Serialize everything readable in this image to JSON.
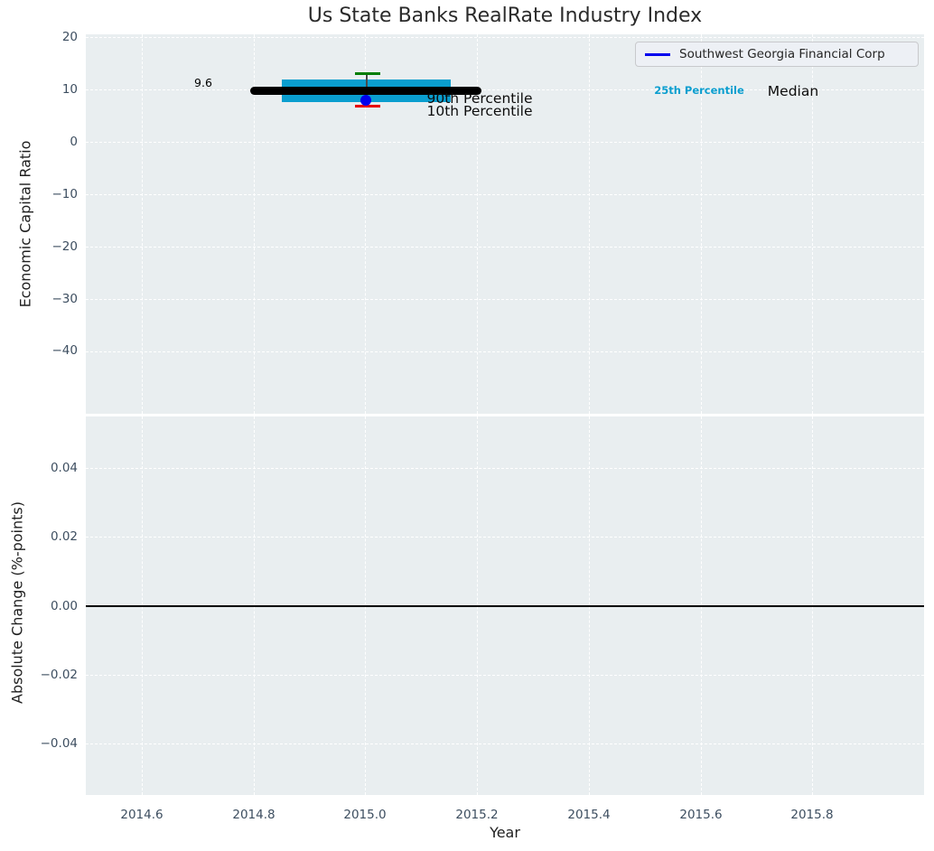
{
  "figure": {
    "title": "Us State Banks RealRate Industry Index"
  },
  "legend": {
    "label": "Southwest Georgia Financial Corp"
  },
  "top_panel": {
    "ylabel": "Economic Capital Ratio",
    "yticks": [
      "20",
      "10",
      "0",
      "−10",
      "−20",
      "−30",
      "−40"
    ],
    "annotations": {
      "median_value": "9.6",
      "p90": "90th Percentile",
      "p10": "10th Percentile",
      "p25": "25th Percentile",
      "median": "Median"
    }
  },
  "bottom_panel": {
    "ylabel": "Absolute Change (%-points)",
    "yticks": [
      "0.04",
      "0.02",
      "0.00",
      "−0.02",
      "−0.04"
    ]
  },
  "x_axis": {
    "label": "Year",
    "ticks": [
      "2014.6",
      "2014.8",
      "2015.0",
      "2015.2",
      "2015.4",
      "2015.6",
      "2015.8"
    ]
  },
  "colors": {
    "panel_bg": "#e9eef0",
    "grid": "#ffffff",
    "tick_label": "#3d4e60",
    "iqr_box": "#0a9ecf",
    "median_line": "#000000",
    "p90_cap": "#007d00",
    "p10_cap": "#e80000",
    "company_marker": "#0000ee",
    "zero_line": "#000000"
  },
  "chart_data": [
    {
      "type": "box-errorbar",
      "title": "Us State Banks RealRate Industry Index",
      "xlabel": "Year",
      "ylabel": "Economic Capital Ratio",
      "xlim": [
        2014.5,
        2016.0
      ],
      "ylim": [
        -52,
        20.5
      ],
      "xticks": [
        2014.6,
        2014.8,
        2015.0,
        2015.2,
        2015.4,
        2015.6,
        2015.8
      ],
      "yticks": [
        20,
        10,
        0,
        -10,
        -20,
        -30,
        -40
      ],
      "grid": true,
      "legend_entries": [
        "Southwest Georgia Financial Corp"
      ],
      "legend_position": "upper right",
      "point": {
        "x": 2015.0,
        "median": 9.6,
        "median_label": "9.6",
        "median_x_range": [
          2014.8,
          2015.2
        ],
        "p90": 13.0,
        "p75": 11.7,
        "p25": 7.6,
        "p10": 6.9,
        "box_x_range": [
          2014.85,
          2015.15
        ],
        "company_value": 7.9
      },
      "series": [
        {
          "name": "Southwest Georgia Financial Corp",
          "x": [
            2015.0
          ],
          "y": [
            7.9
          ]
        }
      ]
    },
    {
      "type": "line",
      "xlabel": "Year",
      "ylabel": "Absolute Change (%-points)",
      "xlim": [
        2014.5,
        2016.0
      ],
      "ylim": [
        -0.055,
        0.055
      ],
      "xticks": [
        2014.6,
        2014.8,
        2015.0,
        2015.2,
        2015.4,
        2015.6,
        2015.8
      ],
      "yticks": [
        0.04,
        0.02,
        0.0,
        -0.02,
        -0.04
      ],
      "grid": true,
      "hline": 0.0,
      "series": []
    }
  ]
}
